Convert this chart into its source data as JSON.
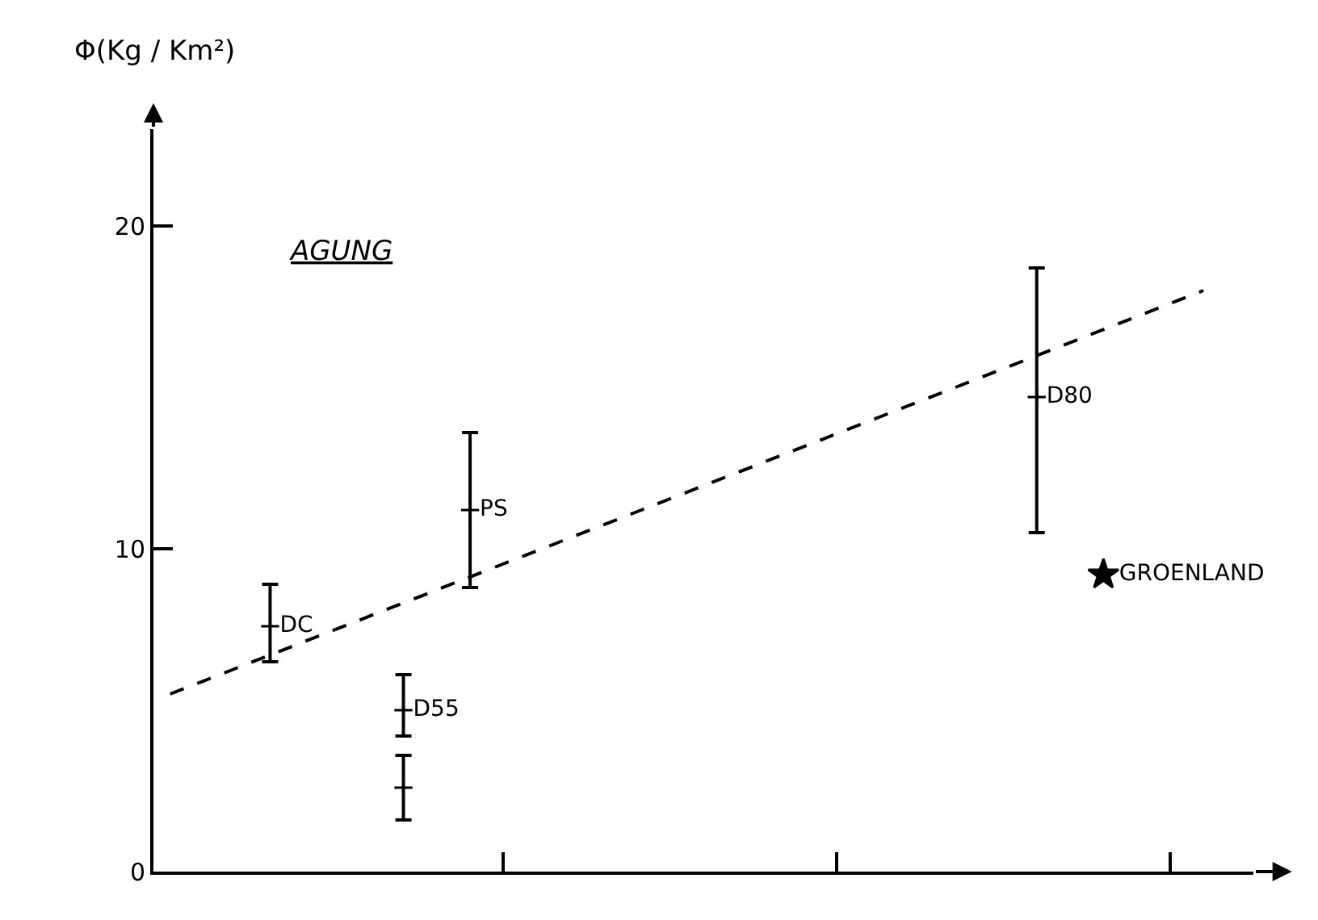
{
  "chart_data": {
    "type": "scatter",
    "ylabel": "Φ(Kg / Km²)",
    "annotations": [
      "AGUNG"
    ],
    "categories": [
      null,
      null,
      null,
      null,
      null,
      null,
      null,
      null,
      null,
      null,
      null,
      null,
      null,
      null,
      null,
      null,
      null,
      null,
      null,
      null,
      null,
      null,
      null,
      null,
      null,
      null,
      null,
      null,
      null,
      null,
      null,
      null,
      null
    ],
    "series": [
      {
        "name": "DC",
        "color": "#000000",
        "marker": "cross",
        "values": [
          null,
          null,
          null,
          7.6,
          null,
          null,
          null,
          null,
          null,
          null,
          null,
          null,
          null,
          null,
          null,
          null,
          null,
          null,
          null,
          null,
          null,
          null,
          null,
          null,
          null,
          null,
          null,
          null,
          null,
          null,
          null,
          null,
          null
        ],
        "errors": [
          null,
          null,
          null,
          [
            6.5,
            8.9
          ],
          null,
          null,
          null,
          null,
          null,
          null,
          null,
          null,
          null,
          null,
          null,
          null,
          null,
          null,
          null,
          null,
          null,
          null,
          null,
          null,
          null,
          null,
          null,
          null,
          null,
          null,
          null,
          null,
          null
        ]
      },
      {
        "name": "PS",
        "color": "#000000",
        "marker": "cross",
        "values": [
          null,
          null,
          null,
          null,
          null,
          null,
          null,
          null,
          null,
          11.2,
          null,
          null,
          null,
          null,
          null,
          null,
          null,
          null,
          null,
          null,
          null,
          null,
          null,
          null,
          null,
          null,
          null,
          null,
          null,
          null,
          null,
          null,
          null
        ],
        "errors": [
          null,
          null,
          null,
          null,
          null,
          null,
          null,
          null,
          null,
          [
            8.8,
            13.6
          ],
          null,
          null,
          null,
          null,
          null,
          null,
          null,
          null,
          null,
          null,
          null,
          null,
          null,
          null,
          null,
          null,
          null,
          null,
          null,
          null,
          null,
          null,
          null
        ]
      },
      {
        "name": "D55",
        "color": "#000000",
        "marker": "cross",
        "values": [
          null,
          null,
          null,
          null,
          null,
          null,
          null,
          5.0,
          null,
          null,
          null,
          null,
          null,
          null,
          null,
          null,
          null,
          null,
          null,
          null,
          null,
          null,
          null,
          null,
          null,
          null,
          null,
          null,
          null,
          null,
          null,
          null,
          null
        ],
        "errors": [
          null,
          null,
          null,
          null,
          null,
          null,
          null,
          [
            4.2,
            6.1
          ],
          null,
          null,
          null,
          null,
          null,
          null,
          null,
          null,
          null,
          null,
          null,
          null,
          null,
          null,
          null,
          null,
          null,
          null,
          null,
          null,
          null,
          null,
          null,
          null,
          null
        ]
      },
      {
        "color": "#000000",
        "marker": "cross",
        "values": [
          null,
          null,
          null,
          null,
          null,
          null,
          null,
          2.6,
          null,
          null,
          null,
          null,
          null,
          null,
          null,
          null,
          null,
          null,
          null,
          null,
          null,
          null,
          null,
          null,
          null,
          null,
          null,
          null,
          null,
          null,
          null,
          null,
          null
        ],
        "errors": [
          null,
          null,
          null,
          null,
          null,
          null,
          null,
          [
            1.6,
            3.6
          ],
          null,
          null,
          null,
          null,
          null,
          null,
          null,
          null,
          null,
          null,
          null,
          null,
          null,
          null,
          null,
          null,
          null,
          null,
          null,
          null,
          null,
          null,
          null,
          null,
          null
        ]
      },
      {
        "name": "D80",
        "color": "#000000",
        "marker": "cross",
        "values": [
          null,
          null,
          null,
          null,
          null,
          null,
          null,
          null,
          null,
          null,
          null,
          null,
          null,
          null,
          null,
          null,
          null,
          null,
          null,
          null,
          null,
          null,
          null,
          null,
          null,
          null,
          14.7,
          null,
          null,
          null,
          null,
          null,
          null
        ],
        "errors": [
          null,
          null,
          null,
          null,
          null,
          null,
          null,
          null,
          null,
          null,
          null,
          null,
          null,
          null,
          null,
          null,
          null,
          null,
          null,
          null,
          null,
          null,
          null,
          null,
          null,
          null,
          [
            10.5,
            18.7
          ],
          null,
          null,
          null,
          null,
          null,
          null
        ]
      },
      {
        "name": "GROENLAND",
        "color": "#000000",
        "marker": "star",
        "values": [
          null,
          null,
          null,
          null,
          null,
          null,
          null,
          null,
          null,
          null,
          null,
          null,
          null,
          null,
          null,
          null,
          null,
          null,
          null,
          null,
          null,
          null,
          null,
          null,
          null,
          null,
          null,
          null,
          9.2,
          null,
          null,
          null,
          null
        ]
      },
      {
        "type": "line",
        "color": "#000000",
        "line_style": "dashed",
        "values": [
          5.5,
          null,
          null,
          null,
          null,
          null,
          null,
          null,
          null,
          null,
          null,
          null,
          null,
          null,
          null,
          null,
          null,
          null,
          null,
          null,
          null,
          null,
          null,
          null,
          null,
          null,
          null,
          null,
          null,
          null,
          null,
          18.0,
          null
        ]
      }
    ],
    "ylim": [
      0,
      23
    ],
    "yticks": [
      0,
      10,
      20
    ],
    "grid": false,
    "tick_labels": "y"
  }
}
